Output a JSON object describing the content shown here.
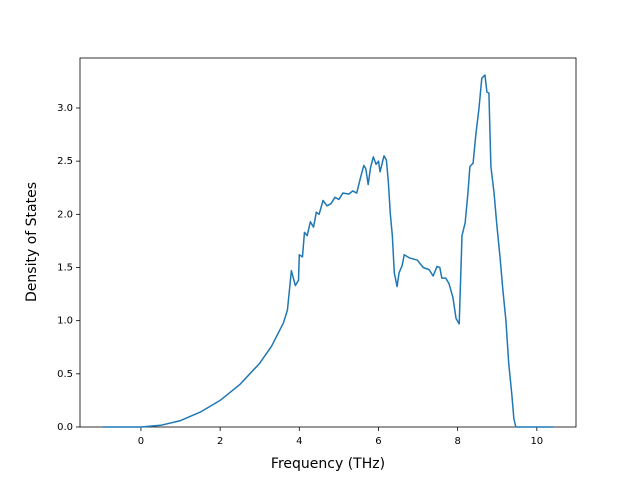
{
  "chart_data": {
    "type": "line",
    "xlabel": "Frequency (THz)",
    "ylabel": "Density of States",
    "xlim": [
      -1.54,
      10.99
    ],
    "ylim": [
      0,
      3.47
    ],
    "xticks": [
      0,
      2,
      4,
      6,
      8,
      10
    ],
    "yticks": [
      {
        "value": 0,
        "label": "0.0"
      },
      {
        "value": 0.5,
        "label": "0.5"
      },
      {
        "value": 1,
        "label": "1.0"
      },
      {
        "value": 1.5,
        "label": "1.5"
      },
      {
        "value": 2,
        "label": "2.0"
      },
      {
        "value": 2.5,
        "label": "2.5"
      },
      {
        "value": 3,
        "label": "3.0"
      }
    ],
    "color": "#1f77b4",
    "x": [
      -0.97,
      -0.5,
      0,
      0.5,
      1,
      1.5,
      2,
      2.5,
      3,
      3.3,
      3.6,
      3.7,
      3.8,
      3.9,
      3.98,
      4.0,
      4.08,
      4.13,
      4.2,
      4.28,
      4.36,
      4.43,
      4.5,
      4.6,
      4.7,
      4.8,
      4.9,
      5.0,
      5.1,
      5.25,
      5.35,
      5.45,
      5.55,
      5.63,
      5.68,
      5.74,
      5.8,
      5.87,
      5.94,
      6.0,
      6.04,
      6.14,
      6.2,
      6.25,
      6.3,
      6.35,
      6.4,
      6.47,
      6.52,
      6.6,
      6.65,
      6.78,
      6.98,
      7.13,
      7.28,
      7.38,
      7.48,
      7.55,
      7.6,
      7.7,
      7.78,
      7.88,
      7.96,
      8.04,
      8.11,
      8.19,
      8.26,
      8.31,
      8.39,
      8.46,
      8.54,
      8.61,
      8.69,
      8.74,
      8.79,
      8.84,
      8.92,
      8.99,
      9.07,
      9.14,
      9.22,
      9.29,
      9.37,
      9.42,
      9.47,
      10.42
    ],
    "values": [
      0,
      0,
      0,
      0.016,
      0.06,
      0.14,
      0.25,
      0.4,
      0.6,
      0.76,
      0.98,
      1.1,
      1.47,
      1.33,
      1.38,
      1.62,
      1.6,
      1.83,
      1.8,
      1.93,
      1.88,
      2.02,
      2.0,
      2.13,
      2.08,
      2.1,
      2.16,
      2.14,
      2.2,
      2.19,
      2.22,
      2.2,
      2.35,
      2.46,
      2.43,
      2.28,
      2.44,
      2.54,
      2.47,
      2.5,
      2.4,
      2.55,
      2.51,
      2.3,
      2.0,
      1.8,
      1.45,
      1.32,
      1.45,
      1.52,
      1.62,
      1.59,
      1.57,
      1.5,
      1.48,
      1.42,
      1.51,
      1.5,
      1.4,
      1.4,
      1.35,
      1.22,
      1.02,
      0.97,
      1.8,
      1.92,
      2.2,
      2.45,
      2.48,
      2.75,
      3.0,
      3.28,
      3.31,
      3.15,
      3.14,
      2.45,
      2.2,
      1.9,
      1.6,
      1.3,
      1.0,
      0.6,
      0.3,
      0.08,
      0,
      0
    ]
  }
}
